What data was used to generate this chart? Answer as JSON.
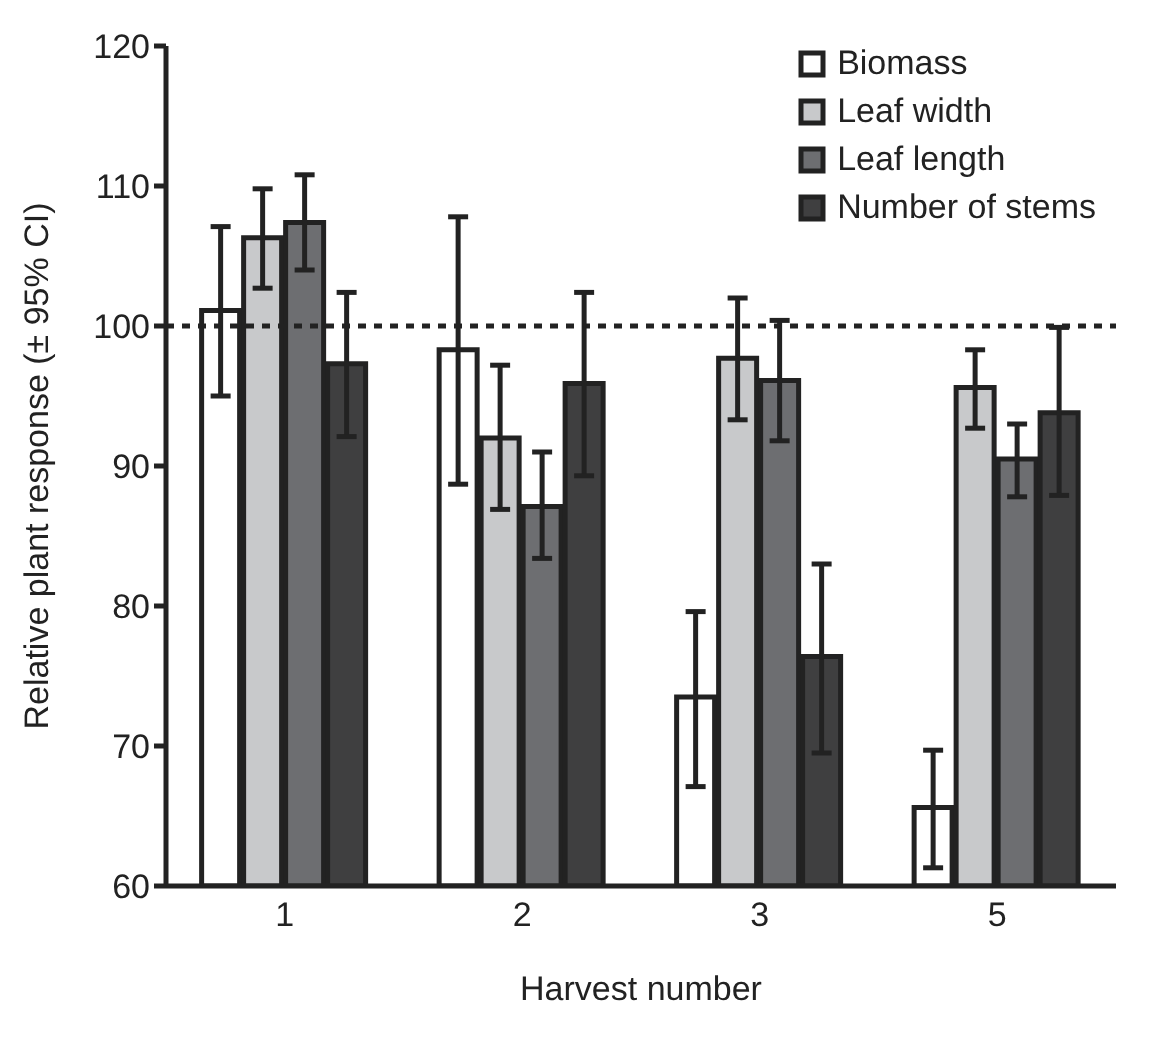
{
  "chart_data": {
    "type": "bar",
    "xlabel": "Harvest number",
    "ylabel": "Relative plant response (± 95% CI)",
    "categories": [
      "1",
      "2",
      "3",
      "5"
    ],
    "series": [
      {
        "name": "Biomass",
        "color": "#ffffff",
        "values": [
          101.1,
          98.3,
          73.5,
          65.6
        ],
        "errors": [
          [
            95.0,
            107.1
          ],
          [
            88.7,
            107.8
          ],
          [
            67.1,
            79.6
          ],
          [
            61.3,
            69.7
          ]
        ]
      },
      {
        "name": "Leaf width",
        "color": "#c8c9cb",
        "values": [
          106.3,
          92.0,
          97.7,
          95.6
        ],
        "errors": [
          [
            102.7,
            109.8
          ],
          [
            86.9,
            97.2
          ],
          [
            93.3,
            102.0
          ],
          [
            92.7,
            98.3
          ]
        ]
      },
      {
        "name": "Leaf length",
        "color": "#6d6e71",
        "values": [
          107.4,
          87.1,
          96.1,
          90.5
        ],
        "errors": [
          [
            104.0,
            110.8
          ],
          [
            83.4,
            91.0
          ],
          [
            91.8,
            100.4
          ],
          [
            87.8,
            93.0
          ]
        ]
      },
      {
        "name": "Number of stems",
        "color": "#3f3f40",
        "values": [
          97.3,
          95.9,
          76.4,
          93.8
        ],
        "errors": [
          [
            92.1,
            102.4
          ],
          [
            89.3,
            102.4
          ],
          [
            69.5,
            83.0
          ],
          [
            87.9,
            99.9
          ]
        ]
      }
    ],
    "ylim": [
      60,
      120
    ],
    "yticks": [
      60,
      70,
      80,
      90,
      100,
      110,
      120
    ],
    "grid": false,
    "legend": "top right",
    "ref_lines": [
      {
        "axis": "y",
        "value": 100,
        "line_style": "dashed"
      }
    ]
  }
}
